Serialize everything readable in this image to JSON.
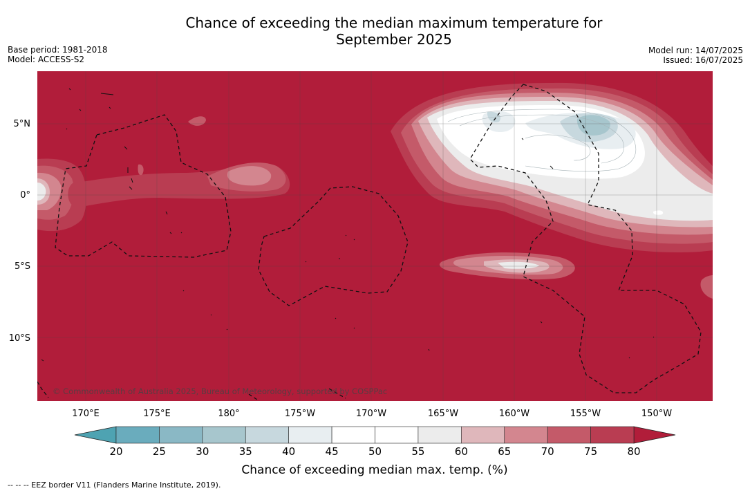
{
  "title": {
    "line1": "Chance of exceeding the median maximum temperature for",
    "line2": "September 2025"
  },
  "meta_left": {
    "base_period": "Base period: 1981-2018",
    "model": "Model: ACCESS-S2"
  },
  "meta_right": {
    "model_run": "Model run: 14/07/2025",
    "issued": "Issued: 16/07/2025"
  },
  "map": {
    "lat_labels": [
      "5°N",
      "0°",
      "5°S",
      "10°S"
    ],
    "lon_labels": [
      "170°E",
      "175°E",
      "180°",
      "175°W",
      "170°W",
      "165°W",
      "160°W",
      "155°W",
      "150°W"
    ],
    "copyright": "© Commonwealth of Australia 2025, Bureau of Meteorology, supported by COSPPac",
    "colors": {
      "gt80": "#b11d3a",
      "75-80": "#b93d52",
      "70-75": "#c45a69",
      "65-70": "#d3868f",
      "60-65": "#dfb7bb",
      "55-60": "#ececec",
      "45-55": "#ffffff",
      "40-45": "#e8eef1",
      "35-40": "#c7d8de",
      "30-35": "#a7c6cd"
    }
  },
  "colorbar": {
    "ticks": [
      "20",
      "25",
      "30",
      "35",
      "40",
      "45",
      "50",
      "55",
      "60",
      "65",
      "70",
      "75",
      "80"
    ],
    "colors": [
      "#6aacbd",
      "#8ab8c5",
      "#a7c6cd",
      "#c7d8de",
      "#e8eef1",
      "#ffffff",
      "#ffffff",
      "#ececec",
      "#dfb7bb",
      "#d3868f",
      "#c45a69",
      "#b93d52"
    ],
    "under_color": "#4ea3b2",
    "over_color": "#b11d3a",
    "label": "Chance of exceeding median max. temp. (%)"
  },
  "footer": "--  --  -- EEZ border V11 (Flanders Marine Institute, 2019)."
}
